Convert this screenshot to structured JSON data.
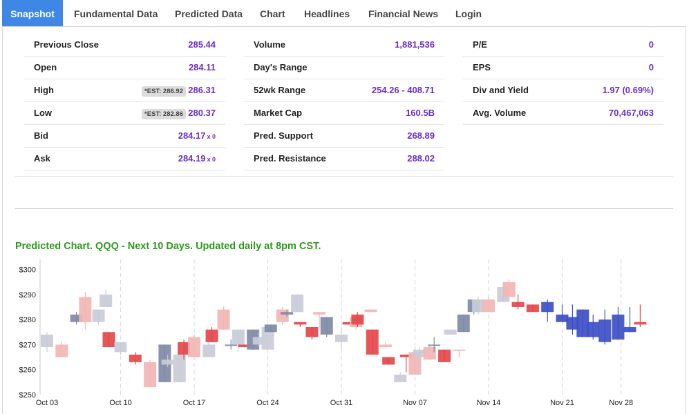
{
  "tabs": [
    "Snapshot",
    "Fundamental Data",
    "Predicted Data",
    "Chart",
    "Headlines",
    "Financial News",
    "Login"
  ],
  "quote": {
    "col1": [
      {
        "label": "Previous Close",
        "value": "285.44"
      },
      {
        "label": "Open",
        "value": "284.11"
      },
      {
        "label": "High",
        "value": "286.31",
        "est": "*EST: 286.92"
      },
      {
        "label": "Low",
        "value": "280.37",
        "est": "*EST: 282.86"
      },
      {
        "label": "Bid",
        "value": "284.17",
        "suffix": "x 0"
      },
      {
        "label": "Ask",
        "value": "284.19",
        "suffix": "x 0"
      }
    ],
    "col2": [
      {
        "label": "Volume",
        "value": "1,881,536"
      },
      {
        "label": "Day's Range",
        "value": ""
      },
      {
        "label": "52wk Range",
        "value": "254.26 - 408.71"
      },
      {
        "label": "Market Cap",
        "value": "160.5B"
      },
      {
        "label": "Pred. Support",
        "value": "268.89"
      },
      {
        "label": "Pred. Resistance",
        "value": "288.02"
      }
    ],
    "col3": [
      {
        "label": "P/E",
        "value": "0"
      },
      {
        "label": "EPS",
        "value": "0"
      },
      {
        "label": "Div and Yield",
        "value": "1.97 (0.69%)"
      },
      {
        "label": "Avg. Volume",
        "value": "70,467,063"
      }
    ]
  },
  "chart_title": "Predicted Chart. QQQ - Next 10 Days. Updated daily at 8pm CST.",
  "colors": {
    "active_tab": "#3f87e5",
    "value_text": "#6a2fc4",
    "chart_title": "#2b9a1c",
    "gray": "#c9ccd8",
    "slate": "#7f8aa6",
    "pink": "#f2b6b4",
    "red": "#e4474a",
    "predicted": "#3d4fc4",
    "predicted_up": "#e4474a"
  },
  "chart_data": {
    "type": "candlestick",
    "ylim": [
      250,
      304
    ],
    "y_ticks": [
      "$250",
      "$260",
      "$270",
      "$280",
      "$290",
      "$300"
    ],
    "y_tick_values": [
      250,
      260,
      270,
      280,
      290,
      300
    ],
    "x_labels": [
      "Oct 03",
      "Oct 10",
      "Oct 17",
      "Oct 24",
      "Oct 31",
      "Nov 07",
      "Nov 14",
      "Nov 21",
      "Nov 28"
    ],
    "x_label_positions": [
      0,
      5,
      10,
      15,
      20,
      25,
      30,
      35,
      39
    ],
    "candles": [
      {
        "x": 0,
        "open": 269,
        "close": 274,
        "high": 275,
        "low": 267,
        "c": "gray"
      },
      {
        "x": 1,
        "open": 265,
        "close": 270,
        "high": 271,
        "low": 265,
        "c": "pink"
      },
      {
        "x": 2,
        "open": 279,
        "close": 282,
        "high": 283,
        "low": 278,
        "c": "slate"
      },
      {
        "x": 2.6,
        "open": 289,
        "close": 279,
        "high": 291,
        "low": 276,
        "c": "pink"
      },
      {
        "x": 3.5,
        "open": 279,
        "close": 284,
        "high": 284,
        "low": 278,
        "c": "gray"
      },
      {
        "x": 4,
        "open": 285,
        "close": 290,
        "high": 292,
        "low": 285,
        "c": "gray"
      },
      {
        "x": 4.2,
        "open": 275,
        "close": 269,
        "high": 275,
        "low": 269,
        "c": "red"
      },
      {
        "x": 5,
        "open": 267,
        "close": 271,
        "high": 271,
        "low": 266,
        "c": "gray"
      },
      {
        "x": 6,
        "open": 266,
        "close": 263,
        "high": 267,
        "low": 262,
        "c": "red"
      },
      {
        "x": 7,
        "open": 263,
        "close": 253,
        "high": 264,
        "low": 253,
        "c": "pink"
      },
      {
        "x": 8,
        "open": 255,
        "close": 270,
        "high": 270,
        "low": 255,
        "c": "slate"
      },
      {
        "x": 8.2,
        "open": 262,
        "close": 264,
        "high": 266,
        "low": 261,
        "c": "gray"
      },
      {
        "x": 9,
        "open": 255,
        "close": 266,
        "high": 268,
        "low": 255,
        "c": "gray"
      },
      {
        "x": 9.3,
        "open": 271,
        "close": 266,
        "high": 272,
        "low": 264,
        "c": "red"
      },
      {
        "x": 10,
        "open": 265,
        "close": 273,
        "high": 274,
        "low": 265,
        "c": "pink"
      },
      {
        "x": 11,
        "open": 265,
        "close": 270,
        "high": 275,
        "low": 265,
        "c": "gray"
      },
      {
        "x": 11.2,
        "open": 276,
        "close": 271,
        "high": 277,
        "low": 271,
        "c": "red"
      },
      {
        "x": 12,
        "open": 276,
        "close": 284,
        "high": 285,
        "low": 276,
        "c": "pink"
      },
      {
        "x": 12.5,
        "open": 270,
        "close": 270,
        "high": 272,
        "low": 268,
        "c": "slate"
      },
      {
        "x": 13,
        "open": 270,
        "close": 276,
        "high": 276,
        "low": 267,
        "c": "gray"
      },
      {
        "x": 13.4,
        "open": 270,
        "close": 269,
        "high": 270,
        "low": 269,
        "c": "red"
      },
      {
        "x": 14,
        "open": 268,
        "close": 276,
        "high": 276,
        "low": 268,
        "c": "slate"
      },
      {
        "x": 14.4,
        "open": 270,
        "close": 273,
        "high": 275,
        "low": 269,
        "c": "gray"
      },
      {
        "x": 15,
        "open": 268,
        "close": 277,
        "high": 278,
        "low": 268,
        "c": "gray"
      },
      {
        "x": 15.2,
        "open": 275,
        "close": 278,
        "high": 278,
        "low": 275,
        "c": "slate"
      },
      {
        "x": 16,
        "open": 279,
        "close": 284,
        "high": 285,
        "low": 278,
        "c": "pink"
      },
      {
        "x": 16.3,
        "open": 283,
        "close": 282,
        "high": 284,
        "low": 281,
        "c": "slate"
      },
      {
        "x": 17,
        "open": 283,
        "close": 290,
        "high": 290,
        "low": 283,
        "c": "gray"
      },
      {
        "x": 17.2,
        "open": 279,
        "close": 278,
        "high": 279,
        "low": 277,
        "c": "red"
      },
      {
        "x": 18,
        "open": 277,
        "close": 273,
        "high": 277,
        "low": 272,
        "c": "red"
      },
      {
        "x": 18.5,
        "open": 283,
        "close": 282,
        "high": 283,
        "low": 276,
        "c": "pink"
      },
      {
        "x": 19,
        "open": 274,
        "close": 281,
        "high": 281,
        "low": 273,
        "c": "slate"
      },
      {
        "x": 20,
        "open": 271,
        "close": 274,
        "high": 277,
        "low": 268,
        "c": "gray"
      },
      {
        "x": 20.5,
        "open": 279,
        "close": 278,
        "high": 279,
        "low": 278,
        "c": "red"
      },
      {
        "x": 21,
        "open": 277,
        "close": 281,
        "high": 281,
        "low": 276,
        "c": "pink"
      },
      {
        "x": 21.1,
        "open": 282,
        "close": 278,
        "high": 283,
        "low": 277,
        "c": "red"
      },
      {
        "x": 22,
        "open": 284,
        "close": 283,
        "high": 284,
        "low": 283,
        "c": "pink"
      },
      {
        "x": 22.1,
        "open": 276,
        "close": 266,
        "high": 276,
        "low": 266,
        "c": "red"
      },
      {
        "x": 23,
        "open": 270,
        "close": 269,
        "high": 271,
        "low": 269,
        "c": "pink"
      },
      {
        "x": 23.2,
        "open": 265,
        "close": 262,
        "high": 265,
        "low": 262,
        "c": "red"
      },
      {
        "x": 24,
        "open": 258,
        "close": 255,
        "high": 259,
        "low": 255,
        "c": "gray"
      },
      {
        "x": 24.4,
        "open": 266,
        "close": 265,
        "high": 266,
        "low": 259,
        "c": "red"
      },
      {
        "x": 25,
        "open": 267,
        "close": 258,
        "high": 269,
        "low": 258,
        "c": "pink"
      },
      {
        "x": 25.3,
        "open": 265,
        "close": 268,
        "high": 269,
        "low": 258,
        "c": "gray"
      },
      {
        "x": 26,
        "open": 264,
        "close": 269,
        "high": 270,
        "low": 264,
        "c": "pink"
      },
      {
        "x": 26.3,
        "open": 270,
        "close": 270,
        "high": 273,
        "low": 267,
        "c": "slate"
      },
      {
        "x": 27,
        "open": 268,
        "close": 263,
        "high": 268,
        "low": 263,
        "c": "red"
      },
      {
        "x": 27.4,
        "open": 274,
        "close": 276,
        "high": 276,
        "low": 274,
        "c": "gray"
      },
      {
        "x": 28,
        "open": 268,
        "close": 268,
        "high": 268,
        "low": 265,
        "c": "pink"
      },
      {
        "x": 28.3,
        "open": 275,
        "close": 282,
        "high": 282,
        "low": 275,
        "c": "slate"
      },
      {
        "x": 29,
        "open": 283,
        "close": 288,
        "high": 288,
        "low": 282,
        "c": "slate"
      },
      {
        "x": 29.3,
        "open": 283,
        "close": 288,
        "high": 289,
        "low": 282,
        "c": "gray"
      },
      {
        "x": 30,
        "open": 283,
        "close": 288,
        "high": 289,
        "low": 283,
        "c": "pink"
      },
      {
        "x": 31,
        "open": 293,
        "close": 287,
        "high": 295,
        "low": 287,
        "c": "gray"
      },
      {
        "x": 31.4,
        "open": 295,
        "close": 289,
        "high": 296,
        "low": 289,
        "c": "pink"
      },
      {
        "x": 32,
        "open": 287,
        "close": 285,
        "high": 290,
        "low": 284,
        "c": "red"
      },
      {
        "x": 33,
        "open": 286,
        "close": 283,
        "high": 286,
        "low": 283,
        "c": "red"
      },
      {
        "x": 34,
        "open": 283,
        "close": 287,
        "high": 288,
        "low": 279,
        "c": "predicted"
      },
      {
        "x": 35,
        "open": 279,
        "close": 282,
        "high": 286,
        "low": 279,
        "c": "predicted"
      },
      {
        "x": 35.7,
        "open": 276,
        "close": 281,
        "high": 286,
        "low": 274,
        "c": "predicted"
      },
      {
        "x": 36.4,
        "open": 273,
        "close": 284,
        "high": 284,
        "low": 273,
        "c": "predicted"
      },
      {
        "x": 37.1,
        "open": 273,
        "close": 279,
        "high": 282,
        "low": 272,
        "c": "predicted"
      },
      {
        "x": 37.9,
        "open": 271,
        "close": 280,
        "high": 284,
        "low": 270,
        "c": "predicted"
      },
      {
        "x": 38.8,
        "open": 272,
        "close": 282,
        "high": 285,
        "low": 272,
        "c": "predicted"
      },
      {
        "x": 39.6,
        "open": 275,
        "close": 277,
        "high": 285,
        "low": 275,
        "c": "predicted"
      },
      {
        "x": 40.3,
        "open": 278,
        "close": 279,
        "high": 286,
        "low": 277,
        "c": "predicted_up"
      }
    ]
  }
}
